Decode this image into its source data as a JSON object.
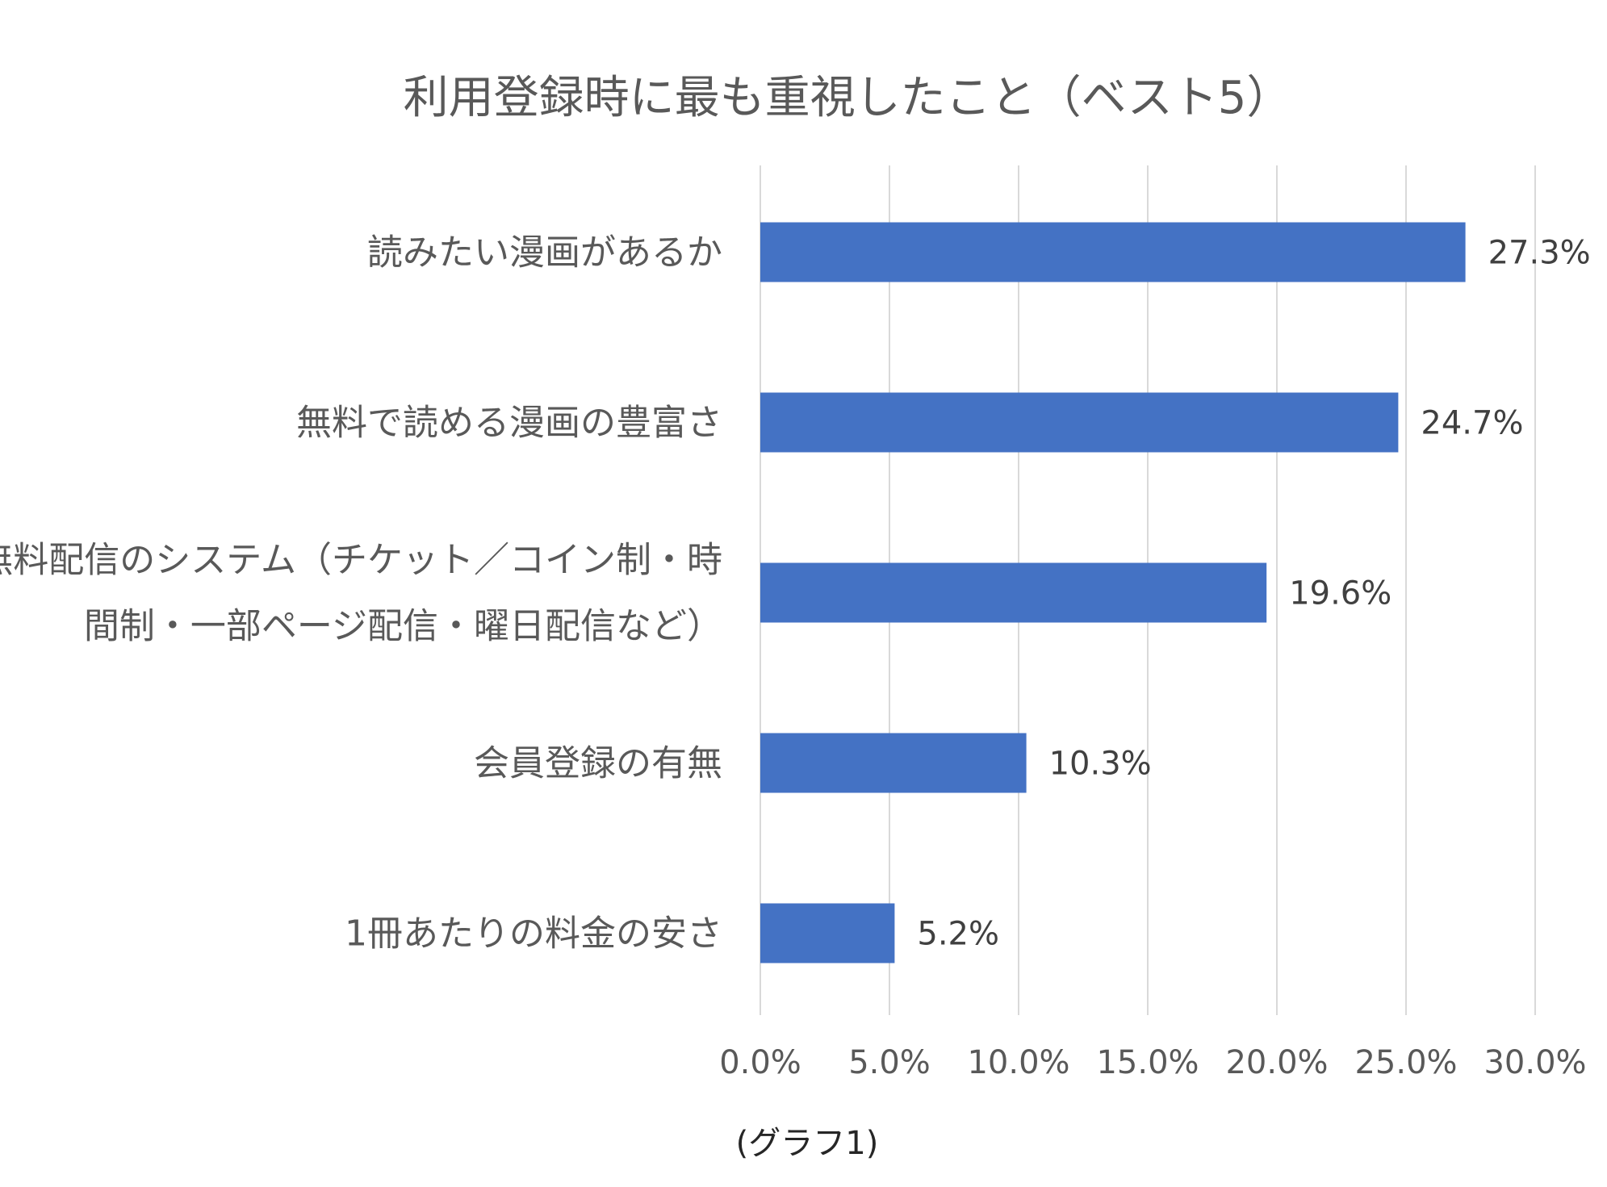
{
  "chart_data": {
    "type": "bar",
    "orientation": "horizontal",
    "title": "利用登録時に最も重視したこと（ベスト5）",
    "categories": [
      [
        "読みたい漫画があるか"
      ],
      [
        "無料で読める漫画の豊富さ"
      ],
      [
        "無料配信のシステム（チケット／コイン制・時",
        "間制・一部ページ配信・曜日配信など）"
      ],
      [
        "会員登録の有無"
      ],
      [
        "1冊あたりの料金の安さ"
      ]
    ],
    "values": [
      27.3,
      24.7,
      19.6,
      10.3,
      5.2
    ],
    "data_labels": [
      "27.3%",
      "24.7%",
      "19.6%",
      "10.3%",
      "5.2%"
    ],
    "x_ticks": [
      "0.0%",
      "5.0%",
      "10.0%",
      "15.0%",
      "20.0%",
      "25.0%",
      "30.0%"
    ],
    "xlim": [
      0,
      30
    ],
    "grid": true,
    "bar_color": "#4472c4",
    "caption": "(グラフ1)"
  }
}
